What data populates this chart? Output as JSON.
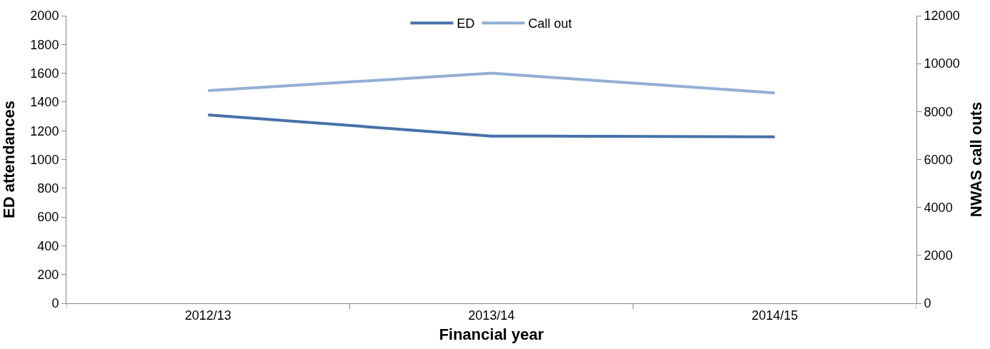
{
  "chart_data": {
    "type": "line",
    "xlabel": "Financial year",
    "ylabel": "ED attendances",
    "y2label": "NWAS call outs",
    "categories": [
      "2012/13",
      "2013/14",
      "2014/15"
    ],
    "series": [
      {
        "name": "ED",
        "color": "#4672a8",
        "values": [
          1310,
          1163,
          1158
        ]
      },
      {
        "name": "Call out",
        "color": "#94aed5",
        "values": [
          8870,
          9600,
          8780
        ],
        "axis": "y2"
      }
    ],
    "ylim": [
      0,
      2000
    ],
    "yticks": [
      0,
      200,
      400,
      600,
      800,
      1000,
      1200,
      1400,
      1600,
      1800,
      2000
    ],
    "y2lim": [
      0,
      12000
    ],
    "y2ticks": [
      0,
      2000,
      4000,
      6000,
      8000,
      10000,
      12000
    ],
    "legend": "top",
    "marker": "none",
    "line_style": "solid"
  }
}
